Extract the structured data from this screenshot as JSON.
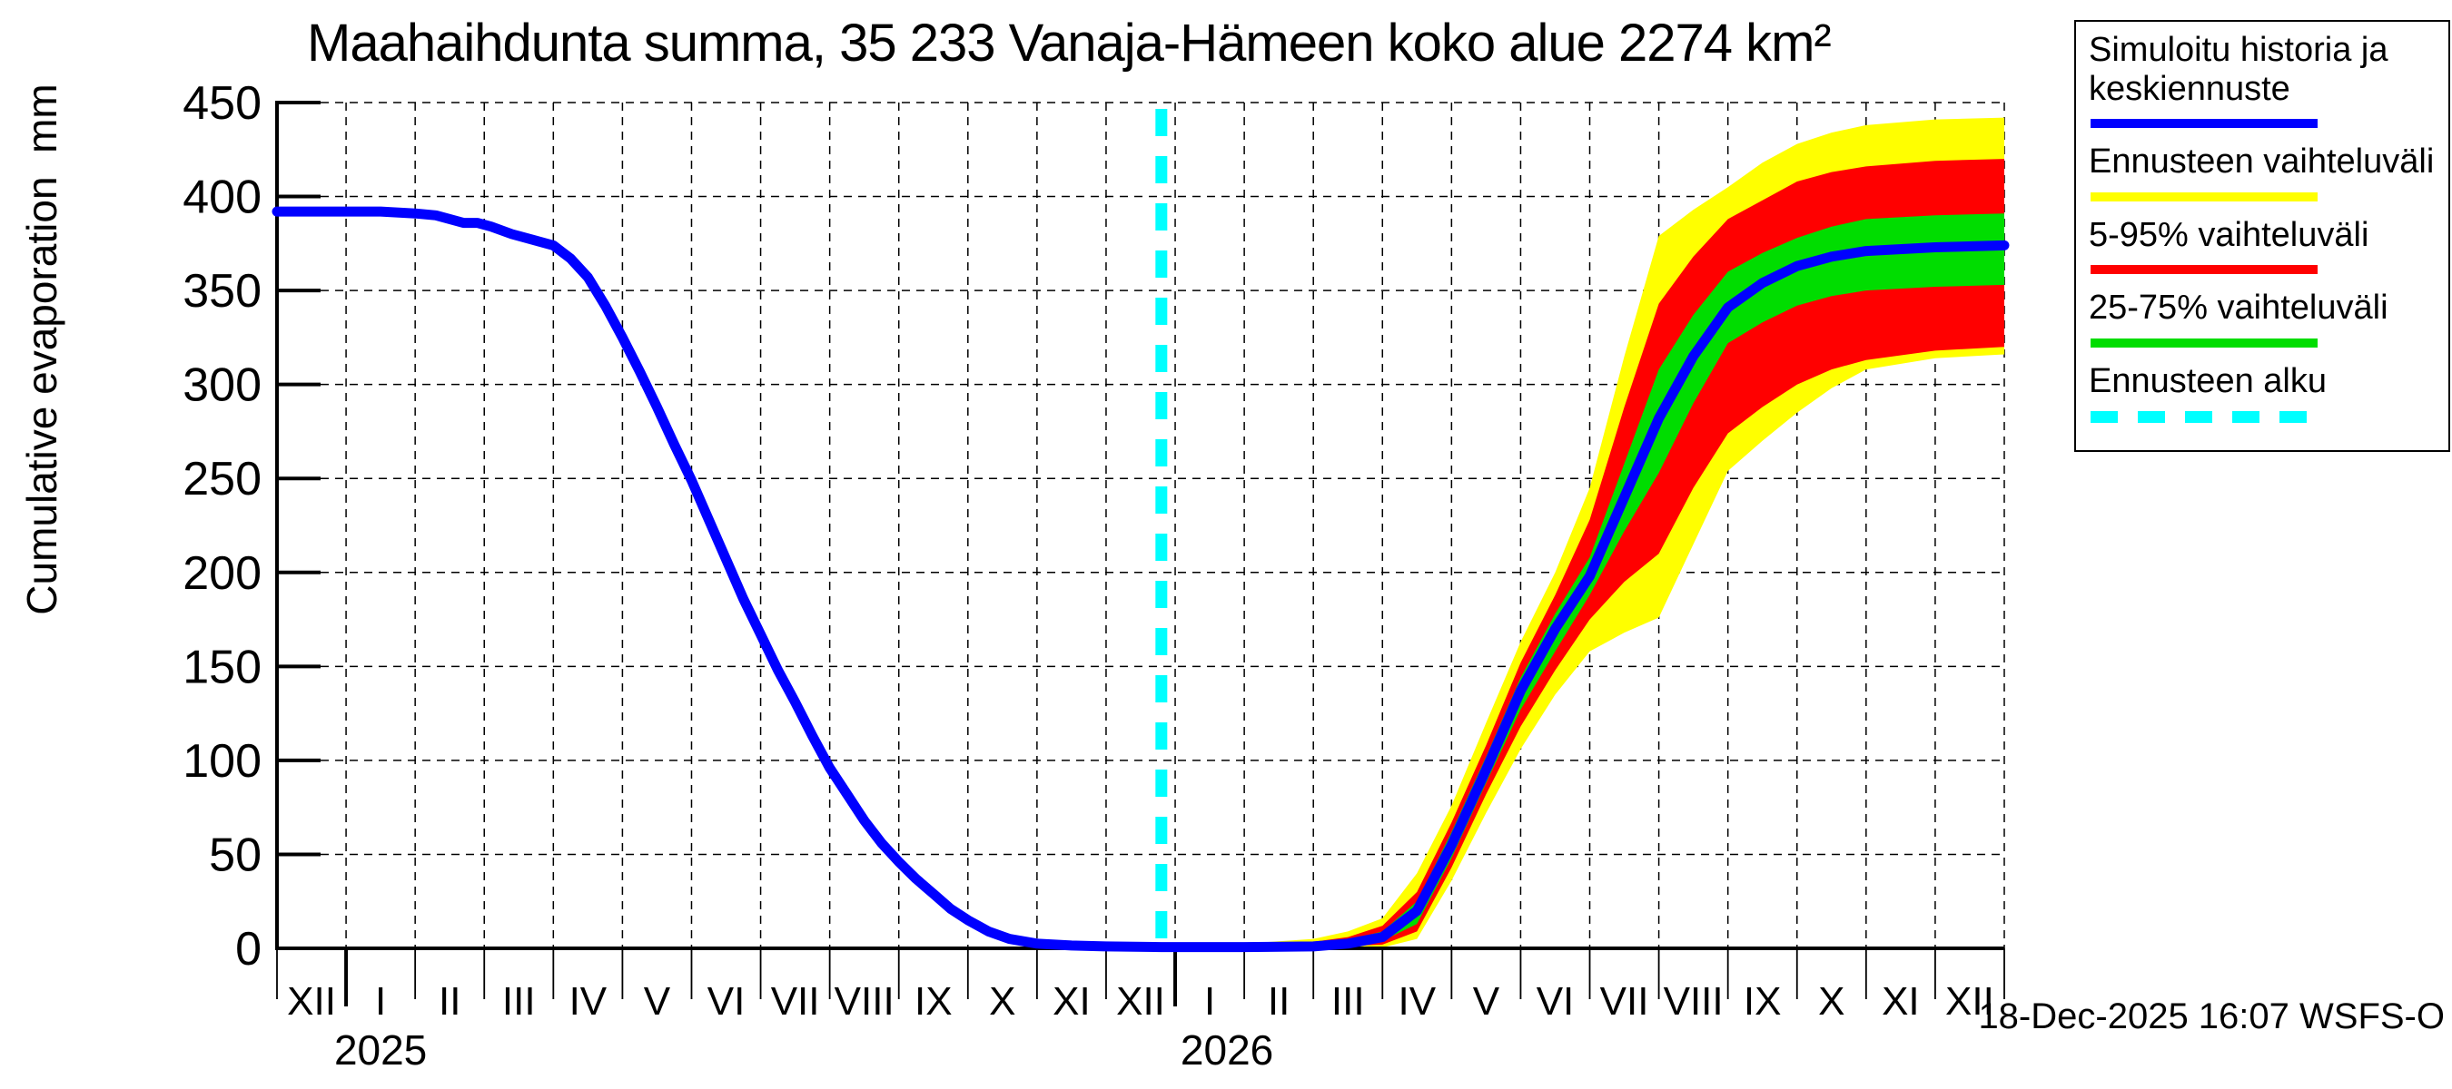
{
  "footer": {
    "timestamp": "18-Dec-2025 16:07 WSFS-O"
  },
  "chart_data": {
    "type": "line",
    "title": "Maahaihdunta summa, 35 233 Vanaja-Hämeen koko alue 2274 km²",
    "ylabel": "Cumulative evaporation  mm",
    "ylim": [
      0,
      450
    ],
    "y_ticks": [
      0,
      50,
      100,
      150,
      200,
      250,
      300,
      350,
      400,
      450
    ],
    "grid": true,
    "x_unit": "months from Dec 2024 to Dec 2026",
    "x_tick_labels": [
      "XII",
      "I",
      "II",
      "III",
      "IV",
      "V",
      "VI",
      "VII",
      "VIII",
      "IX",
      "X",
      "XI",
      "XII",
      "I",
      "II",
      "III",
      "IV",
      "V",
      "VI",
      "VII",
      "VIII",
      "IX",
      "X",
      "XI",
      "XII"
    ],
    "x_year_labels": [
      {
        "label": "2025",
        "t_center": 1.5
      },
      {
        "label": "2026",
        "t_center": 13.75
      }
    ],
    "legend": {
      "position": "top-right",
      "items": [
        {
          "label": "Simuloitu historia ja\nkeskiennuste",
          "color": "#0000ff",
          "style": "solid"
        },
        {
          "label": "Ennusteen vaihteluväli",
          "color": "#ffff00",
          "style": "solid"
        },
        {
          "label": "5-95% vaihteluväli",
          "color": "#ff0000",
          "style": "solid"
        },
        {
          "label": "25-75% vaihteluväli",
          "color": "#00dd00",
          "style": "solid"
        },
        {
          "label": "Ennusteen alku",
          "color": "#00ffff",
          "style": "dashed"
        }
      ]
    },
    "forecast_start": {
      "label": "Ennusteen alku",
      "t": 12.8,
      "date": "18-Dec-2025",
      "color": "#00ffff"
    },
    "series": [
      {
        "name": "Simuloitu historia ja keskiennuste",
        "color": "#0000ff",
        "points": [
          [
            0,
            392
          ],
          [
            0.5,
            392
          ],
          [
            1,
            392
          ],
          [
            1.5,
            392
          ],
          [
            2,
            391
          ],
          [
            2.3,
            390
          ],
          [
            2.5,
            388
          ],
          [
            2.7,
            386
          ],
          [
            2.9,
            386
          ],
          [
            3.1,
            384
          ],
          [
            3.4,
            380
          ],
          [
            3.7,
            377
          ],
          [
            4,
            374
          ],
          [
            4.25,
            367
          ],
          [
            4.5,
            357
          ],
          [
            4.75,
            342
          ],
          [
            5,
            325
          ],
          [
            5.25,
            307
          ],
          [
            5.5,
            288
          ],
          [
            5.75,
            268
          ],
          [
            6,
            249
          ],
          [
            6.25,
            228
          ],
          [
            6.5,
            207
          ],
          [
            6.75,
            186
          ],
          [
            7,
            167
          ],
          [
            7.25,
            148
          ],
          [
            7.5,
            131
          ],
          [
            7.75,
            113
          ],
          [
            8,
            96
          ],
          [
            8.25,
            82
          ],
          [
            8.5,
            68
          ],
          [
            8.75,
            56
          ],
          [
            9,
            46
          ],
          [
            9.25,
            37
          ],
          [
            9.5,
            29
          ],
          [
            9.75,
            21
          ],
          [
            10,
            15
          ],
          [
            10.3,
            9
          ],
          [
            10.6,
            5
          ],
          [
            11,
            2.5
          ],
          [
            11.5,
            1.5
          ],
          [
            12,
            1
          ],
          [
            12.8,
            0.7
          ],
          [
            13,
            0.7
          ],
          [
            14,
            0.7
          ],
          [
            15,
            1
          ],
          [
            15.5,
            2.5
          ],
          [
            16,
            6
          ],
          [
            16.5,
            20
          ],
          [
            17,
            55
          ],
          [
            17.5,
            95
          ],
          [
            18,
            137
          ],
          [
            18.5,
            170
          ],
          [
            19,
            198
          ],
          [
            19.5,
            240
          ],
          [
            20,
            282
          ],
          [
            20.5,
            315
          ],
          [
            21,
            341
          ],
          [
            21.5,
            354
          ],
          [
            22,
            363
          ],
          [
            22.5,
            368
          ],
          [
            23,
            371
          ],
          [
            24,
            373
          ],
          [
            25,
            374
          ]
        ]
      }
    ],
    "bands": [
      {
        "name": "Ennusteen vaihteluväli",
        "color": "#ffff00",
        "upper": [
          [
            12.55,
            0.5
          ],
          [
            13,
            2
          ],
          [
            14,
            2.5
          ],
          [
            15,
            5
          ],
          [
            15.5,
            9
          ],
          [
            16,
            16
          ],
          [
            16.5,
            40
          ],
          [
            17,
            76
          ],
          [
            17.5,
            120
          ],
          [
            18,
            163
          ],
          [
            18.5,
            200
          ],
          [
            19,
            245
          ],
          [
            19.5,
            315
          ],
          [
            20,
            379
          ],
          [
            20.5,
            393
          ],
          [
            21,
            405
          ],
          [
            21.5,
            418
          ],
          [
            22,
            428
          ],
          [
            22.5,
            434
          ],
          [
            23,
            438
          ],
          [
            24,
            441
          ],
          [
            25,
            442
          ]
        ],
        "lower": [
          [
            12.55,
            0.4
          ],
          [
            13,
            0.2
          ],
          [
            14,
            0.2
          ],
          [
            15,
            0.3
          ],
          [
            15.5,
            0.6
          ],
          [
            16,
            0.5
          ],
          [
            16.5,
            5
          ],
          [
            17,
            36
          ],
          [
            17.5,
            72
          ],
          [
            18,
            106
          ],
          [
            18.5,
            135
          ],
          [
            19,
            158
          ],
          [
            19.5,
            168
          ],
          [
            20,
            176
          ],
          [
            20.5,
            215
          ],
          [
            21,
            254
          ],
          [
            21.5,
            270
          ],
          [
            22,
            285
          ],
          [
            22.5,
            298
          ],
          [
            23,
            308
          ],
          [
            24,
            314
          ],
          [
            25,
            316
          ]
        ]
      },
      {
        "name": "5-95% vaihteluväli",
        "color": "#ff0000",
        "upper": [
          [
            12.55,
            0.5
          ],
          [
            13,
            1.3
          ],
          [
            14,
            1.8
          ],
          [
            15,
            3.5
          ],
          [
            15.5,
            6
          ],
          [
            16,
            12
          ],
          [
            16.5,
            30
          ],
          [
            17,
            67
          ],
          [
            17.5,
            108
          ],
          [
            18,
            152
          ],
          [
            18.5,
            188
          ],
          [
            19,
            228
          ],
          [
            19.5,
            288
          ],
          [
            20,
            343
          ],
          [
            20.5,
            368
          ],
          [
            21,
            388
          ],
          [
            21.5,
            398
          ],
          [
            22,
            408
          ],
          [
            22.5,
            413
          ],
          [
            23,
            416
          ],
          [
            24,
            419
          ],
          [
            25,
            420
          ]
        ],
        "lower": [
          [
            12.55,
            0.4
          ],
          [
            13,
            0.4
          ],
          [
            14,
            0.5
          ],
          [
            15,
            0.8
          ],
          [
            15.5,
            1.2
          ],
          [
            16,
            2
          ],
          [
            16.5,
            9
          ],
          [
            17,
            43
          ],
          [
            17.5,
            82
          ],
          [
            18,
            118
          ],
          [
            18.5,
            148
          ],
          [
            19,
            175
          ],
          [
            19.5,
            195
          ],
          [
            20,
            210
          ],
          [
            20.5,
            245
          ],
          [
            21,
            274
          ],
          [
            21.5,
            288
          ],
          [
            22,
            300
          ],
          [
            22.5,
            308
          ],
          [
            23,
            313
          ],
          [
            24,
            318
          ],
          [
            25,
            320
          ]
        ]
      },
      {
        "name": "25-75% vaihteluväli",
        "color": "#00dd00",
        "upper": [
          [
            12.55,
            0.5
          ],
          [
            13,
            1
          ],
          [
            14,
            1.3
          ],
          [
            15,
            2.5
          ],
          [
            15.5,
            4.5
          ],
          [
            16,
            9
          ],
          [
            16.5,
            25
          ],
          [
            17,
            62
          ],
          [
            17.5,
            102
          ],
          [
            18,
            144
          ],
          [
            18.5,
            178
          ],
          [
            19,
            208
          ],
          [
            19.5,
            258
          ],
          [
            20,
            308
          ],
          [
            20.5,
            337
          ],
          [
            21,
            360
          ],
          [
            21.5,
            370
          ],
          [
            22,
            378
          ],
          [
            22.5,
            384
          ],
          [
            23,
            388
          ],
          [
            24,
            390
          ],
          [
            25,
            391
          ]
        ],
        "lower": [
          [
            12.55,
            0.4
          ],
          [
            13,
            0.6
          ],
          [
            14,
            0.8
          ],
          [
            15,
            1.2
          ],
          [
            15.5,
            2
          ],
          [
            16,
            4
          ],
          [
            16.5,
            13
          ],
          [
            17,
            48
          ],
          [
            17.5,
            88
          ],
          [
            18,
            127
          ],
          [
            18.5,
            158
          ],
          [
            19,
            188
          ],
          [
            19.5,
            222
          ],
          [
            20,
            253
          ],
          [
            20.5,
            290
          ],
          [
            21,
            322
          ],
          [
            21.5,
            333
          ],
          [
            22,
            342
          ],
          [
            22.5,
            347
          ],
          [
            23,
            350
          ],
          [
            24,
            352
          ],
          [
            25,
            353
          ]
        ]
      }
    ]
  }
}
